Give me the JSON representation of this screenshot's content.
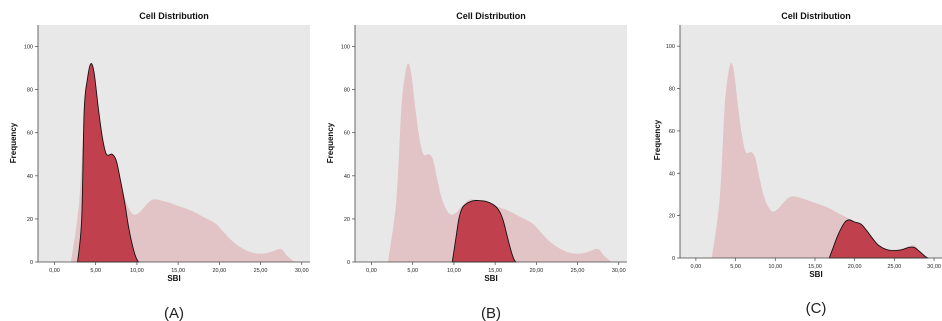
{
  "colors": {
    "plot_bg": "#e8e8e8",
    "background_curve": "#e2c4c6",
    "highlight": "#c0404d",
    "highlight_edge": "#111111"
  },
  "chart_data": [
    {
      "type": "area",
      "title": "Cell Distribution",
      "xlabel": "SBI",
      "ylabel": "Frequency",
      "caption": "(A)",
      "xlim": [
        -2,
        31
      ],
      "ylim": [
        0,
        110
      ],
      "x_ticks": [
        0,
        5,
        10,
        15,
        20,
        25,
        30
      ],
      "x_tick_labels": [
        "0,00",
        "5,00",
        "10,00",
        "15,00",
        "20,00",
        "25,00",
        "30,00"
      ],
      "y_ticks": [
        0,
        20,
        40,
        60,
        80,
        100
      ],
      "y_tick_labels": [
        "0",
        "20",
        "40",
        "60",
        "80",
        "100"
      ],
      "series": [
        {
          "x": [
            2.0,
            3.0,
            3.6,
            4.0,
            4.4,
            4.8,
            5.3,
            5.8,
            6.3,
            7.0,
            7.5,
            8.0,
            8.5,
            9.0,
            9.6,
            10.3,
            11.0,
            12.0,
            13.5,
            15.0,
            16.5,
            18.0,
            19.5,
            20.5,
            21.5,
            22.5,
            23.5,
            24.5,
            25.5,
            26.5,
            27.5,
            28.2,
            28.8,
            29.2
          ],
          "y": [
            0,
            28,
            70,
            85,
            92,
            88,
            72,
            58,
            50,
            50,
            47,
            38,
            30,
            25,
            22,
            23,
            26,
            29,
            28,
            26,
            24,
            21,
            18,
            14,
            10,
            7,
            5,
            4,
            4,
            5,
            6,
            3,
            1,
            0
          ]
        },
        {
          "x": [
            2.8,
            3.3,
            3.6,
            4.0,
            4.4,
            4.8,
            5.3,
            5.8,
            6.3,
            7.0,
            7.5,
            8.0,
            8.5,
            9.0,
            9.5,
            9.9,
            10.2
          ],
          "y": [
            0,
            20,
            70,
            85,
            92,
            88,
            72,
            58,
            50,
            50,
            47,
            38,
            28,
            16,
            7,
            2,
            0
          ]
        }
      ]
    },
    {
      "type": "area",
      "title": "Cell Distribution",
      "xlabel": "SBI",
      "ylabel": "Frequency",
      "caption": "(B)",
      "xlim": [
        -2,
        31
      ],
      "ylim": [
        0,
        110
      ],
      "x_ticks": [
        0,
        5,
        10,
        15,
        20,
        25,
        30
      ],
      "x_tick_labels": [
        "0,00",
        "5,00",
        "10,00",
        "15,00",
        "20,00",
        "25,00",
        "30,00"
      ],
      "y_ticks": [
        0,
        20,
        40,
        60,
        80,
        100
      ],
      "y_tick_labels": [
        "0",
        "20",
        "40",
        "60",
        "80",
        "100"
      ],
      "series": [
        {
          "x": [
            2.0,
            3.0,
            3.6,
            4.0,
            4.4,
            4.8,
            5.3,
            5.8,
            6.3,
            7.0,
            7.5,
            8.0,
            8.5,
            9.0,
            9.6,
            10.3,
            11.0,
            12.0,
            13.5,
            15.0,
            16.5,
            18.0,
            19.5,
            20.5,
            21.5,
            22.5,
            23.5,
            24.5,
            25.5,
            26.5,
            27.5,
            28.2,
            28.8,
            29.2
          ],
          "y": [
            0,
            28,
            70,
            85,
            92,
            88,
            72,
            58,
            50,
            50,
            47,
            38,
            30,
            25,
            22,
            23,
            26,
            29,
            28,
            26,
            24,
            21,
            18,
            14,
            10,
            7,
            5,
            4,
            4,
            5,
            6,
            3,
            1,
            0
          ]
        },
        {
          "x": [
            9.8,
            10.2,
            10.6,
            11.0,
            11.5,
            12.0,
            12.5,
            13.0,
            14.0,
            15.0,
            15.6,
            16.0,
            16.4,
            16.8,
            17.2,
            17.5
          ],
          "y": [
            0,
            10,
            20,
            25,
            27,
            28,
            28.5,
            28.5,
            28,
            26,
            23,
            19,
            13,
            7,
            2,
            0
          ]
        }
      ]
    },
    {
      "type": "area",
      "title": "Cell Distribution",
      "xlabel": "SBI",
      "ylabel": "Frequency",
      "caption": "(C)",
      "xlim": [
        -2,
        31
      ],
      "ylim": [
        0,
        110
      ],
      "x_ticks": [
        0,
        5,
        10,
        15,
        20,
        25,
        30
      ],
      "x_tick_labels": [
        "0,00",
        "5,00",
        "10,00",
        "15,00",
        "20,00",
        "25,00",
        "30,00"
      ],
      "y_ticks": [
        0,
        20,
        40,
        60,
        80,
        100
      ],
      "y_tick_labels": [
        "0",
        "20",
        "40",
        "60",
        "80",
        "100"
      ],
      "series": [
        {
          "x": [
            2.0,
            3.0,
            3.6,
            4.0,
            4.4,
            4.8,
            5.3,
            5.8,
            6.3,
            7.0,
            7.5,
            8.0,
            8.5,
            9.0,
            9.6,
            10.3,
            11.0,
            12.0,
            13.5,
            15.0,
            16.5,
            18.0,
            19.5,
            20.5,
            21.5,
            22.5,
            23.5,
            24.5,
            25.5,
            26.5,
            27.5,
            28.2,
            28.8,
            29.2
          ],
          "y": [
            0,
            28,
            70,
            85,
            92,
            88,
            72,
            58,
            50,
            50,
            47,
            38,
            30,
            25,
            22,
            23,
            26,
            29,
            28,
            26,
            24,
            21,
            18,
            14,
            10,
            7,
            5,
            4,
            4,
            5,
            6,
            3,
            1,
            0
          ]
        },
        {
          "x": [
            16.8,
            17.3,
            17.8,
            18.3,
            18.8,
            19.3,
            20.0,
            20.8,
            21.5,
            22.3,
            23.0,
            24.0,
            25.0,
            26.0,
            26.8,
            27.5,
            28.2,
            28.8,
            29.2
          ],
          "y": [
            0,
            5,
            10,
            14,
            17,
            18,
            17,
            16,
            13,
            9,
            6,
            4,
            3.5,
            4,
            5,
            5,
            3,
            1,
            0
          ]
        }
      ]
    }
  ]
}
